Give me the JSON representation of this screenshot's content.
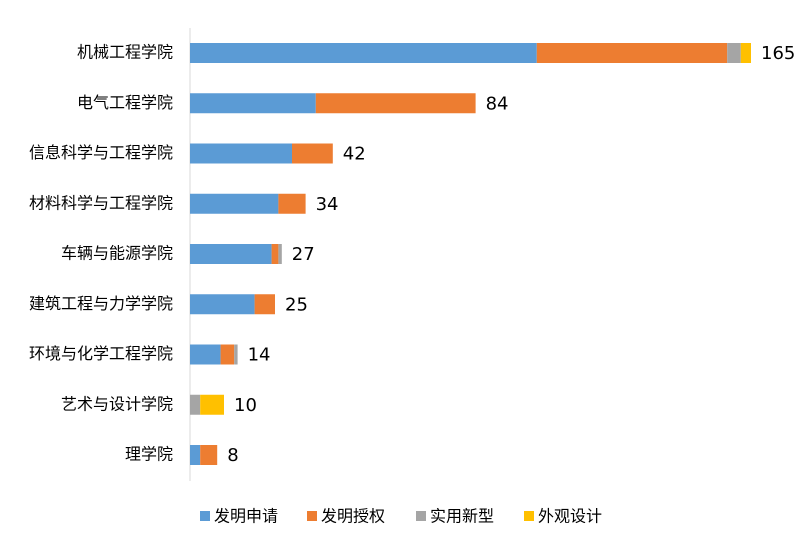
{
  "chart_data": {
    "type": "stacked-bar-horizontal",
    "categories": [
      "机械工程学院",
      "电气工程学院",
      "信息科学与工程学院",
      "材料科学与工程学院",
      "车辆与能源学院",
      "建筑工程与力学学院",
      "环境与化学工程学院",
      "艺术与设计学院",
      "理学院"
    ],
    "series": [
      {
        "name": "发明申请",
        "color": "#5b9bd5",
        "values": [
          102,
          37,
          30,
          26,
          24,
          19,
          9,
          0,
          3
        ]
      },
      {
        "name": "发明授权",
        "color": "#ed7d31",
        "values": [
          56,
          47,
          12,
          8,
          2,
          6,
          4,
          0,
          5
        ]
      },
      {
        "name": "实用新型",
        "color": "#a5a5a5",
        "values": [
          4,
          0,
          0,
          0,
          1,
          0,
          1,
          3,
          0
        ]
      },
      {
        "name": "外观设计",
        "color": "#ffc000",
        "values": [
          3,
          0,
          0,
          0,
          0,
          0,
          0,
          7,
          0
        ]
      }
    ],
    "totals": [
      165,
      84,
      42,
      34,
      27,
      25,
      14,
      10,
      8
    ],
    "legend": "bottom"
  }
}
